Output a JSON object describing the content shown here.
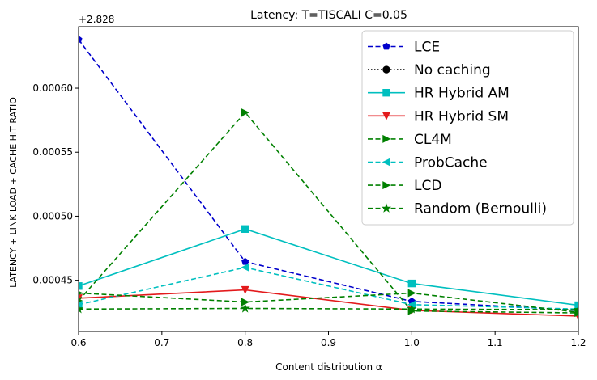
{
  "chart_data": {
    "type": "line",
    "title": "Latency: T=TISCALI C=0.05",
    "xlabel": "Content distribution α",
    "ylabel": "LATENCY + LINK LOAD + CACHE HIT RATIO",
    "offset_label": "+2.828",
    "xlim": [
      0.6,
      1.2
    ],
    "ylim": [
      0.00041,
      0.000648
    ],
    "x_ticks": [
      0.6,
      0.7,
      0.8,
      0.9,
      1.0,
      1.1,
      1.2
    ],
    "x_tick_labels": [
      "0.6",
      "0.7",
      "0.8",
      "0.9",
      "1.0",
      "1.1",
      "1.2"
    ],
    "y_ticks": [
      0.00045,
      0.0005,
      0.00055,
      0.0006
    ],
    "y_tick_labels": [
      "0.00045",
      "0.00050",
      "0.00055",
      "0.00060"
    ],
    "legend_position": "top-right",
    "x": [
      0.6,
      0.8,
      1.0,
      1.2
    ],
    "series": [
      {
        "name": "LCE",
        "values": [
          0.000638,
          0.0004645,
          0.0004335,
          0.0004265
        ],
        "color": "#0000cc",
        "dash": "dashed",
        "marker": "pentagon"
      },
      {
        "name": "No caching",
        "values": [
          null,
          null,
          null,
          null
        ],
        "color": "#000000",
        "dash": "dotted",
        "marker": "circle"
      },
      {
        "name": "HR Hybrid AM",
        "values": [
          0.0004455,
          0.00049,
          0.0004475,
          0.0004305
        ],
        "color": "#00bfbf",
        "dash": "solid",
        "marker": "square"
      },
      {
        "name": "HR Hybrid SM",
        "values": [
          0.000436,
          0.0004425,
          0.0004265,
          0.000422
        ],
        "color": "#e31a1c",
        "dash": "solid",
        "marker": "triangle-down"
      },
      {
        "name": "CL4M",
        "values": [
          0.000434,
          0.000581,
          0.000426,
          0.0004245
        ],
        "color": "#008000",
        "dash": "dashed",
        "marker": "triangle-right"
      },
      {
        "name": "ProbCache",
        "values": [
          0.000431,
          0.00046,
          0.000431,
          0.0004275
        ],
        "color": "#00bfbf",
        "dash": "dashed",
        "marker": "triangle-left"
      },
      {
        "name": "LCD",
        "values": [
          0.00044,
          0.000433,
          0.00044,
          0.000425
        ],
        "color": "#008000",
        "dash": "dashed",
        "marker": "triangle-right"
      },
      {
        "name": "Random (Bernoulli)",
        "values": [
          0.0004275,
          0.000428,
          0.0004275,
          0.000427
        ],
        "color": "#008000",
        "dash": "dashed",
        "marker": "star"
      }
    ]
  }
}
